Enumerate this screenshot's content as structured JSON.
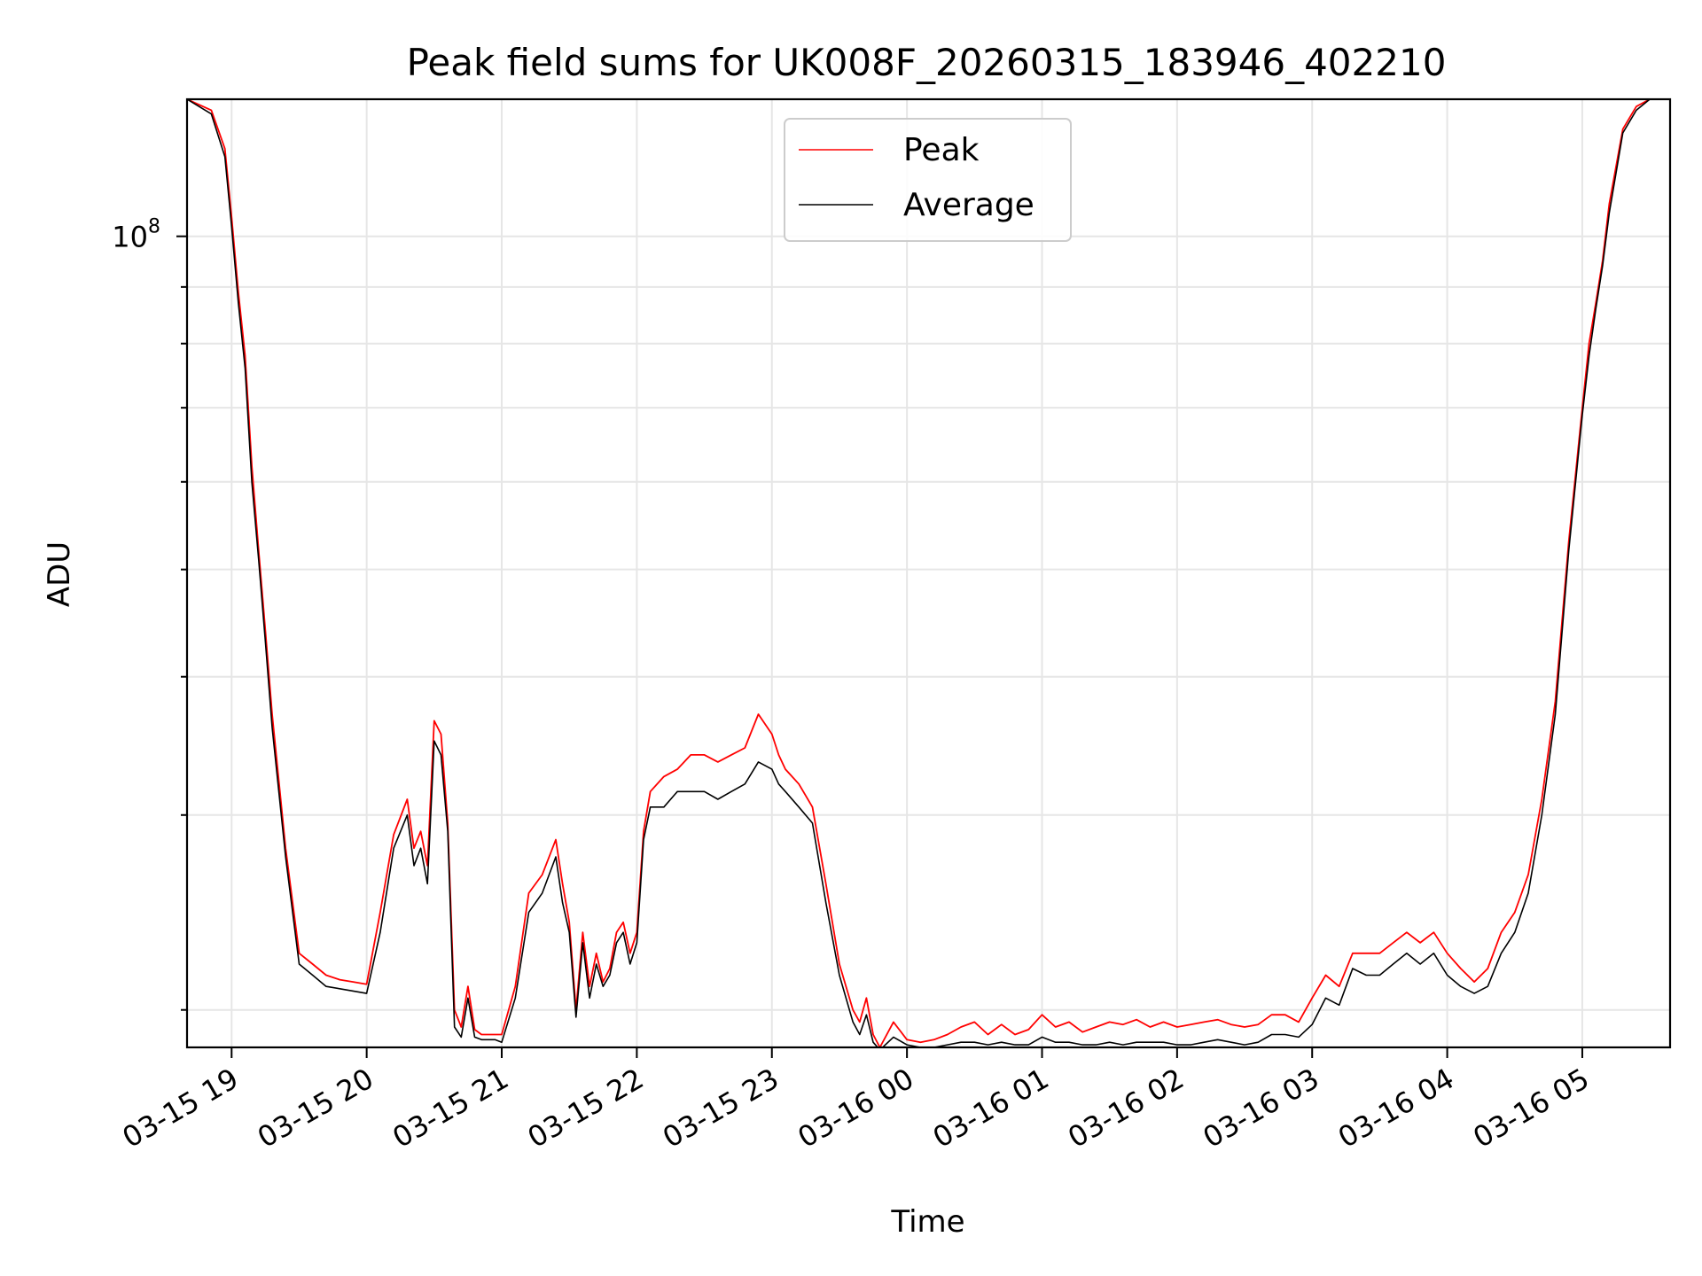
{
  "chart_data": {
    "type": "line",
    "title": "Peak field sums for UK008F_20260315_183946_402210",
    "xlabel": "Time",
    "ylabel": "ADU",
    "yscale": "log",
    "grid": true,
    "legend_position": "top-center",
    "x_unit": "hours since 2026-03-15 19:00",
    "xlim": [
      -0.33,
      10.65
    ],
    "ylim": [
      18500000,
      133000000
    ],
    "x_ticks": [
      {
        "value": 0,
        "label": "03-15 19"
      },
      {
        "value": 1,
        "label": "03-15 20"
      },
      {
        "value": 2,
        "label": "03-15 21"
      },
      {
        "value": 3,
        "label": "03-15 22"
      },
      {
        "value": 4,
        "label": "03-15 23"
      },
      {
        "value": 5,
        "label": "03-16 00"
      },
      {
        "value": 6,
        "label": "03-16 01"
      },
      {
        "value": 7,
        "label": "03-16 02"
      },
      {
        "value": 8,
        "label": "03-16 03"
      },
      {
        "value": 9,
        "label": "03-16 04"
      },
      {
        "value": 10,
        "label": "03-16 05"
      }
    ],
    "y_major_ticks": [
      {
        "value": 100000000,
        "label_base": "10",
        "label_exp": "8"
      }
    ],
    "y_minor_ticks": [
      20000000,
      30000000,
      40000000,
      50000000,
      60000000,
      70000000,
      80000000,
      90000000,
      200000000
    ],
    "series": [
      {
        "name": "Peak",
        "color": "#ff0000",
        "x": [
          -0.33,
          -0.15,
          -0.05,
          0.0,
          0.05,
          0.1,
          0.15,
          0.2,
          0.25,
          0.3,
          0.4,
          0.5,
          0.6,
          0.7,
          0.8,
          0.9,
          1.0,
          1.1,
          1.2,
          1.3,
          1.35,
          1.4,
          1.45,
          1.5,
          1.55,
          1.6,
          1.65,
          1.7,
          1.75,
          1.8,
          1.85,
          1.9,
          1.95,
          2.0,
          2.1,
          2.2,
          2.3,
          2.4,
          2.45,
          2.5,
          2.55,
          2.6,
          2.65,
          2.7,
          2.75,
          2.8,
          2.85,
          2.9,
          2.95,
          3.0,
          3.05,
          3.1,
          3.2,
          3.3,
          3.4,
          3.5,
          3.6,
          3.7,
          3.8,
          3.9,
          4.0,
          4.05,
          4.1,
          4.2,
          4.3,
          4.4,
          4.5,
          4.6,
          4.65,
          4.7,
          4.75,
          4.8,
          4.9,
          5.0,
          5.1,
          5.2,
          5.3,
          5.4,
          5.5,
          5.6,
          5.7,
          5.8,
          5.9,
          6.0,
          6.1,
          6.2,
          6.3,
          6.4,
          6.5,
          6.6,
          6.7,
          6.8,
          6.9,
          7.0,
          7.1,
          7.2,
          7.3,
          7.4,
          7.5,
          7.6,
          7.7,
          7.8,
          7.9,
          8.0,
          8.1,
          8.2,
          8.3,
          8.4,
          8.5,
          8.6,
          8.7,
          8.8,
          8.9,
          9.0,
          9.1,
          9.2,
          9.3,
          9.4,
          9.5,
          9.6,
          9.7,
          9.8,
          9.9,
          10.0,
          10.05,
          10.1,
          10.15,
          10.2,
          10.3,
          10.4,
          10.5,
          10.65
        ],
        "y": [
          133000000,
          130000000,
          120000000,
          104000000,
          89000000,
          78000000,
          62000000,
          52000000,
          44000000,
          37000000,
          28000000,
          22500000,
          22000000,
          21500000,
          21300000,
          21200000,
          21100000,
          24500000,
          28800000,
          31000000,
          28000000,
          29000000,
          27000000,
          36500000,
          35500000,
          29500000,
          20000000,
          19300000,
          21000000,
          19200000,
          19000000,
          19000000,
          19000000,
          19000000,
          21000000,
          25500000,
          26500000,
          28500000,
          26000000,
          24000000,
          20000000,
          23500000,
          21000000,
          22500000,
          21200000,
          21800000,
          23500000,
          24000000,
          22500000,
          23500000,
          29000000,
          31500000,
          32500000,
          33000000,
          34000000,
          34000000,
          33500000,
          34000000,
          34500000,
          37000000,
          35500000,
          34000000,
          33000000,
          32000000,
          30500000,
          26000000,
          22000000,
          20000000,
          19500000,
          20500000,
          19000000,
          18500000,
          19500000,
          18800000,
          18700000,
          18800000,
          19000000,
          19300000,
          19500000,
          19000000,
          19400000,
          19000000,
          19200000,
          19800000,
          19300000,
          19500000,
          19100000,
          19300000,
          19500000,
          19400000,
          19600000,
          19300000,
          19500000,
          19300000,
          19400000,
          19500000,
          19600000,
          19400000,
          19300000,
          19400000,
          19800000,
          19800000,
          19500000,
          20500000,
          21500000,
          21000000,
          22500000,
          22500000,
          22500000,
          23000000,
          23500000,
          23000000,
          23500000,
          22500000,
          21800000,
          21200000,
          21800000,
          23500000,
          24500000,
          26500000,
          31000000,
          38000000,
          53000000,
          70000000,
          80000000,
          87000000,
          95000000,
          107000000,
          125000000,
          131000000,
          133000000,
          133000000
        ]
      },
      {
        "name": "Average",
        "color": "#000000",
        "x": [
          -0.33,
          -0.15,
          -0.05,
          0.0,
          0.05,
          0.1,
          0.15,
          0.2,
          0.25,
          0.3,
          0.4,
          0.5,
          0.6,
          0.7,
          0.8,
          0.9,
          1.0,
          1.1,
          1.2,
          1.3,
          1.35,
          1.4,
          1.45,
          1.5,
          1.55,
          1.6,
          1.65,
          1.7,
          1.75,
          1.8,
          1.85,
          1.9,
          1.95,
          2.0,
          2.1,
          2.2,
          2.3,
          2.4,
          2.45,
          2.5,
          2.55,
          2.6,
          2.65,
          2.7,
          2.75,
          2.8,
          2.85,
          2.9,
          2.95,
          3.0,
          3.05,
          3.1,
          3.2,
          3.3,
          3.4,
          3.5,
          3.6,
          3.7,
          3.8,
          3.9,
          4.0,
          4.05,
          4.1,
          4.2,
          4.3,
          4.4,
          4.5,
          4.6,
          4.65,
          4.7,
          4.75,
          4.8,
          4.9,
          5.0,
          5.1,
          5.2,
          5.3,
          5.4,
          5.5,
          5.6,
          5.7,
          5.8,
          5.9,
          6.0,
          6.1,
          6.2,
          6.3,
          6.4,
          6.5,
          6.6,
          6.7,
          6.8,
          6.9,
          7.0,
          7.1,
          7.2,
          7.3,
          7.4,
          7.5,
          7.6,
          7.7,
          7.8,
          7.9,
          8.0,
          8.1,
          8.2,
          8.3,
          8.4,
          8.5,
          8.6,
          8.7,
          8.8,
          8.9,
          9.0,
          9.1,
          9.2,
          9.3,
          9.4,
          9.5,
          9.6,
          9.7,
          9.8,
          9.9,
          10.0,
          10.05,
          10.1,
          10.15,
          10.2,
          10.3,
          10.4,
          10.5,
          10.65
        ],
        "y": [
          133000000,
          129000000,
          118000000,
          102000000,
          87000000,
          76000000,
          60000000,
          51000000,
          43000000,
          36000000,
          27500000,
          22000000,
          21500000,
          21000000,
          20900000,
          20800000,
          20700000,
          23500000,
          28000000,
          30000000,
          27000000,
          28000000,
          26000000,
          35000000,
          34000000,
          29000000,
          19300000,
          18900000,
          20500000,
          18900000,
          18800000,
          18800000,
          18800000,
          18700000,
          20500000,
          24500000,
          25500000,
          27500000,
          25000000,
          23500000,
          19700000,
          23000000,
          20500000,
          22000000,
          21000000,
          21500000,
          23000000,
          23500000,
          22000000,
          23000000,
          28500000,
          30500000,
          30500000,
          31500000,
          31500000,
          31500000,
          31000000,
          31500000,
          32000000,
          33500000,
          33000000,
          32000000,
          31500000,
          30500000,
          29500000,
          25000000,
          21500000,
          19500000,
          19000000,
          19800000,
          18700000,
          18400000,
          18900000,
          18600000,
          18500000,
          18500000,
          18600000,
          18700000,
          18700000,
          18600000,
          18700000,
          18600000,
          18600000,
          18900000,
          18700000,
          18700000,
          18600000,
          18600000,
          18700000,
          18600000,
          18700000,
          18700000,
          18700000,
          18600000,
          18600000,
          18700000,
          18800000,
          18700000,
          18600000,
          18700000,
          19000000,
          19000000,
          18900000,
          19400000,
          20500000,
          20200000,
          21800000,
          21500000,
          21500000,
          22000000,
          22500000,
          22000000,
          22500000,
          21500000,
          21000000,
          20700000,
          21000000,
          22500000,
          23500000,
          25500000,
          30000000,
          37000000,
          52000000,
          69000000,
          78000000,
          86000000,
          94000000,
          105000000,
          124000000,
          130000000,
          133000000,
          133000000
        ]
      }
    ]
  }
}
